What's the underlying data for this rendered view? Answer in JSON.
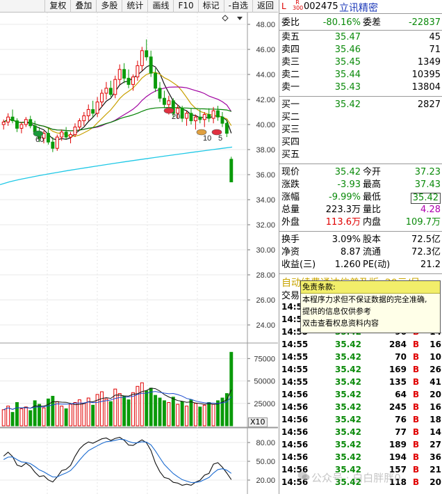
{
  "toolbar": {
    "items": [
      "复权",
      "叠加",
      "多股",
      "统计",
      "画线",
      "F10",
      "标记",
      "-自选",
      "返回"
    ]
  },
  "stock": {
    "l_badge": "L",
    "r_badge_top": "R",
    "r_badge_bottom": "300",
    "code": "002475",
    "name": "立讯精密"
  },
  "order_ratio": {
    "label": "委比",
    "value": "-80.16%",
    "diff_label": "委差",
    "diff_value": "-22837"
  },
  "asks": [
    {
      "label": "卖五",
      "price": "35.47",
      "volume": "45"
    },
    {
      "label": "卖四",
      "price": "35.46",
      "volume": "71"
    },
    {
      "label": "卖三",
      "price": "35.45",
      "volume": "1349"
    },
    {
      "label": "卖二",
      "price": "35.44",
      "volume": "10395"
    },
    {
      "label": "卖一",
      "price": "35.43",
      "volume": "13804"
    }
  ],
  "bids": [
    {
      "label": "买一",
      "price": "35.42",
      "volume": "2827"
    },
    {
      "label": "买二",
      "price": "",
      "volume": ""
    },
    {
      "label": "买三",
      "price": "",
      "volume": ""
    },
    {
      "label": "买四",
      "price": "",
      "volume": ""
    },
    {
      "label": "买五",
      "price": "",
      "volume": ""
    }
  ],
  "quote": {
    "now_label": "现价",
    "now": "35.42",
    "open_label": "今开",
    "open": "37.23",
    "chg_label": "涨跌",
    "chg": "-3.93",
    "high_label": "最高",
    "high": "37.43",
    "pct_label": "涨幅",
    "pct": "-9.99%",
    "low_label": "最低",
    "low": "35.42",
    "vol_label": "总量",
    "vol": "223.3万",
    "vr_label": "量比",
    "vr": "4.28",
    "outer_label": "外盘",
    "outer": "113.6万",
    "inner_label": "内盘",
    "inner": "109.7万"
  },
  "fundamentals": {
    "turnover_label": "换手",
    "turnover": "3.09%",
    "equity_label": "股本",
    "equity": "72.5亿",
    "nav_label": "净资",
    "nav": "8.87",
    "float_label": "流通",
    "float": "72.3亿",
    "eps_label": "收益(三)",
    "eps": "1.260",
    "pe_label": "PE(动)",
    "pe": "21.2"
  },
  "ticker_text": "自动续费通达信普及版, 20元/月",
  "trades_header": "交易",
  "trades": [
    {
      "time": "14:55",
      "price": "",
      "volume": "",
      "side": "",
      "count": ""
    },
    {
      "time": "14:55",
      "price": "",
      "volume": "",
      "side": "",
      "count": ""
    },
    {
      "time": "14:55",
      "price": "35.42",
      "volume": "96",
      "side": "B",
      "count": "14"
    },
    {
      "time": "14:55",
      "price": "35.42",
      "volume": "284",
      "side": "B",
      "count": "16"
    },
    {
      "time": "14:55",
      "price": "35.42",
      "volume": "70",
      "side": "B",
      "count": "10"
    },
    {
      "time": "14:55",
      "price": "35.42",
      "volume": "169",
      "side": "B",
      "count": "26"
    },
    {
      "time": "14:55",
      "price": "35.42",
      "volume": "135",
      "side": "B",
      "count": "41"
    },
    {
      "time": "14:56",
      "price": "35.42",
      "volume": "64",
      "side": "B",
      "count": "20"
    },
    {
      "time": "14:56",
      "price": "35.42",
      "volume": "245",
      "side": "B",
      "count": "16"
    },
    {
      "time": "14:56",
      "price": "35.42",
      "volume": "76",
      "side": "B",
      "count": "18"
    },
    {
      "time": "14:56",
      "price": "35.42",
      "volume": "77",
      "side": "B",
      "count": "14"
    },
    {
      "time": "14:56",
      "price": "35.42",
      "volume": "189",
      "side": "B",
      "count": "27"
    },
    {
      "time": "14:56",
      "price": "35.42",
      "volume": "194",
      "side": "B",
      "count": "36"
    },
    {
      "time": "14:56",
      "price": "35.42",
      "volume": "157",
      "side": "B",
      "count": "21"
    },
    {
      "time": "14:56",
      "price": "35.42",
      "volume": "118",
      "side": "B",
      "count": "20"
    }
  ],
  "tooltip": {
    "title": "免责条款:",
    "lines": [
      "本程序力求但不保证数据的完全准确,",
      "提供的信息仅供参考",
      "双击查看权息资料内容"
    ]
  },
  "watermark": "公众号 · 白白胖胖0",
  "chart_labels": {
    "price_ticks": [
      "48.00",
      "46.00",
      "44.00",
      "42.00",
      "40.00",
      "38.00",
      "36.00",
      "34.00",
      "32.00",
      "30.00",
      "28.00",
      "26.00",
      "24.00"
    ],
    "volume_ticks": [
      "75000",
      "50000",
      "25000"
    ],
    "volume_unit": "X10",
    "kdj_ticks": [
      "80.00",
      "50.00",
      "20.00"
    ],
    "markers": [
      "60",
      "20",
      "10",
      "5"
    ]
  },
  "chart_data": {
    "type": "candlestick",
    "price_axis": [
      24,
      48
    ],
    "candles": [
      [
        40.0,
        40.4,
        39.6,
        40.2
      ],
      [
        40.2,
        40.9,
        39.9,
        40.6
      ],
      [
        40.6,
        41.2,
        40.1,
        40.3
      ],
      [
        40.3,
        40.5,
        39.4,
        39.7
      ],
      [
        39.7,
        40.2,
        39.3,
        40.0
      ],
      [
        40.0,
        40.6,
        39.8,
        40.4
      ],
      [
        40.4,
        40.7,
        39.7,
        39.9
      ],
      [
        39.9,
        40.3,
        39.1,
        39.4
      ],
      [
        39.4,
        39.8,
        38.6,
        38.9
      ],
      [
        38.9,
        39.5,
        38.5,
        39.3
      ],
      [
        39.3,
        39.7,
        38.4,
        38.6
      ],
      [
        38.6,
        39.0,
        37.8,
        38.1
      ],
      [
        38.1,
        39.2,
        37.9,
        39.0
      ],
      [
        39.0,
        39.6,
        38.7,
        39.4
      ],
      [
        39.4,
        39.8,
        38.8,
        39.0
      ],
      [
        39.0,
        39.4,
        38.5,
        39.2
      ],
      [
        39.2,
        40.1,
        39.0,
        39.8
      ],
      [
        39.8,
        40.5,
        39.5,
        40.3
      ],
      [
        40.3,
        41.0,
        39.9,
        40.7
      ],
      [
        40.7,
        41.6,
        40.3,
        41.2
      ],
      [
        41.2,
        41.9,
        40.6,
        40.9
      ],
      [
        40.9,
        42.2,
        40.6,
        41.8
      ],
      [
        41.8,
        42.8,
        41.4,
        42.5
      ],
      [
        42.5,
        43.4,
        42.0,
        42.9
      ],
      [
        42.9,
        43.5,
        42.2,
        42.4
      ],
      [
        42.4,
        43.9,
        42.1,
        43.6
      ],
      [
        43.6,
        44.8,
        43.2,
        44.4
      ],
      [
        44.4,
        44.9,
        43.3,
        43.7
      ],
      [
        43.7,
        44.4,
        42.9,
        43.2
      ],
      [
        43.2,
        44.0,
        42.7,
        43.8
      ],
      [
        43.8,
        45.1,
        43.5,
        44.7
      ],
      [
        44.7,
        46.2,
        44.3,
        45.9
      ],
      [
        45.9,
        46.8,
        45.1,
        45.4
      ],
      [
        45.4,
        45.9,
        43.8,
        44.1
      ],
      [
        44.1,
        44.5,
        42.6,
        42.9
      ],
      [
        42.9,
        43.4,
        41.8,
        42.1
      ],
      [
        42.1,
        42.7,
        41.3,
        41.6
      ],
      [
        41.6,
        42.3,
        40.8,
        41.9
      ],
      [
        41.9,
        42.1,
        40.6,
        40.9
      ],
      [
        40.9,
        41.6,
        40.5,
        41.3
      ],
      [
        41.3,
        41.5,
        40.2,
        40.5
      ],
      [
        40.5,
        41.1,
        39.9,
        40.9
      ],
      [
        40.9,
        41.3,
        40.0,
        40.3
      ],
      [
        40.3,
        40.8,
        39.6,
        40.6
      ],
      [
        40.6,
        41.2,
        40.1,
        40.4
      ],
      [
        40.4,
        41.0,
        39.8,
        40.8
      ],
      [
        40.8,
        41.3,
        40.2,
        40.5
      ],
      [
        40.5,
        41.4,
        40.1,
        41.1
      ],
      [
        41.1,
        41.5,
        40.3,
        40.6
      ],
      [
        40.6,
        41.0,
        39.8,
        40.1
      ],
      [
        40.1,
        40.4,
        39.0,
        39.3
      ],
      [
        37.23,
        37.43,
        35.42,
        35.42
      ]
    ],
    "volume_axis": [
      0,
      90000
    ],
    "volumes": [
      18000,
      22000,
      15000,
      26000,
      19000,
      21000,
      17000,
      28000,
      24000,
      20000,
      30000,
      33000,
      27000,
      22000,
      19000,
      24000,
      26000,
      29000,
      25000,
      31000,
      23000,
      35000,
      38000,
      30000,
      27000,
      41000,
      36000,
      33000,
      29000,
      37000,
      44000,
      48000,
      39000,
      42000,
      34000,
      31000,
      28000,
      26000,
      32000,
      24000,
      27000,
      22000,
      29000,
      25000,
      21000,
      23000,
      26000,
      24000,
      28000,
      31000,
      36000,
      82000
    ],
    "volume_up": [
      true,
      true,
      false,
      false,
      true,
      true,
      false,
      false,
      false,
      true,
      false,
      false,
      true,
      true,
      false,
      true,
      true,
      true,
      true,
      true,
      false,
      true,
      true,
      true,
      false,
      true,
      true,
      false,
      false,
      true,
      true,
      true,
      false,
      false,
      false,
      false,
      false,
      true,
      false,
      true,
      false,
      true,
      false,
      true,
      false,
      true,
      false,
      true,
      false,
      false,
      false,
      false
    ],
    "kdj_axis": [
      0,
      100
    ]
  }
}
